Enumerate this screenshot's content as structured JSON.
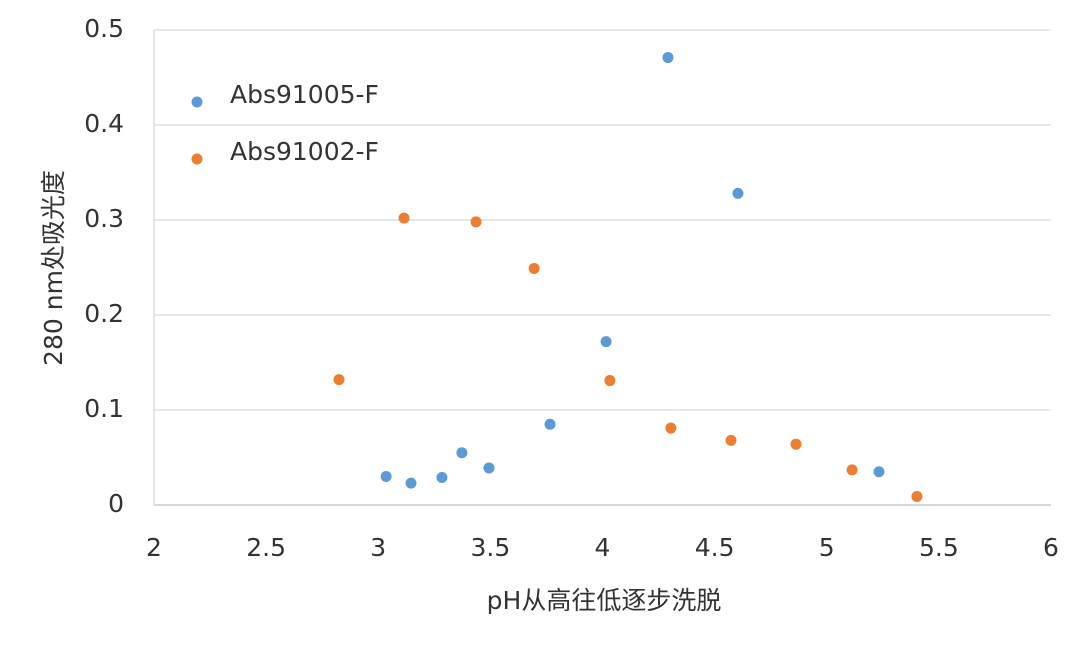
{
  "chart_data": {
    "type": "scatter",
    "x_label": "pH从高往低逐步洗脱",
    "y_label": "280 nm处吸光度",
    "xlim": [
      2,
      6
    ],
    "xticks": [
      2,
      2.5,
      3,
      3.5,
      4,
      4.5,
      5,
      5.5,
      6
    ],
    "ylim": [
      0,
      0.5
    ],
    "yticks": [
      0,
      0.1,
      0.2,
      0.3,
      0.4,
      0.5
    ],
    "grid": true,
    "legend": "upper left",
    "series": [
      {
        "name": "Abs91005-F",
        "color": "#5b9bd5",
        "x": [
          3.035,
          3.146,
          3.284,
          3.373,
          3.494,
          3.766,
          4.016,
          4.292,
          4.604,
          5.233
        ],
        "values": [
          0.03,
          0.023,
          0.029,
          0.055,
          0.039,
          0.085,
          0.172,
          0.471,
          0.328,
          0.035
        ]
      },
      {
        "name": "Abs91002-F",
        "color": "#ed7d31",
        "x": [
          2.825,
          3.115,
          3.436,
          3.695,
          4.033,
          4.305,
          4.573,
          4.863,
          5.113,
          5.402
        ],
        "values": [
          0.132,
          0.302,
          0.298,
          0.249,
          0.131,
          0.081,
          0.068,
          0.064,
          0.037,
          0.009
        ]
      }
    ]
  }
}
